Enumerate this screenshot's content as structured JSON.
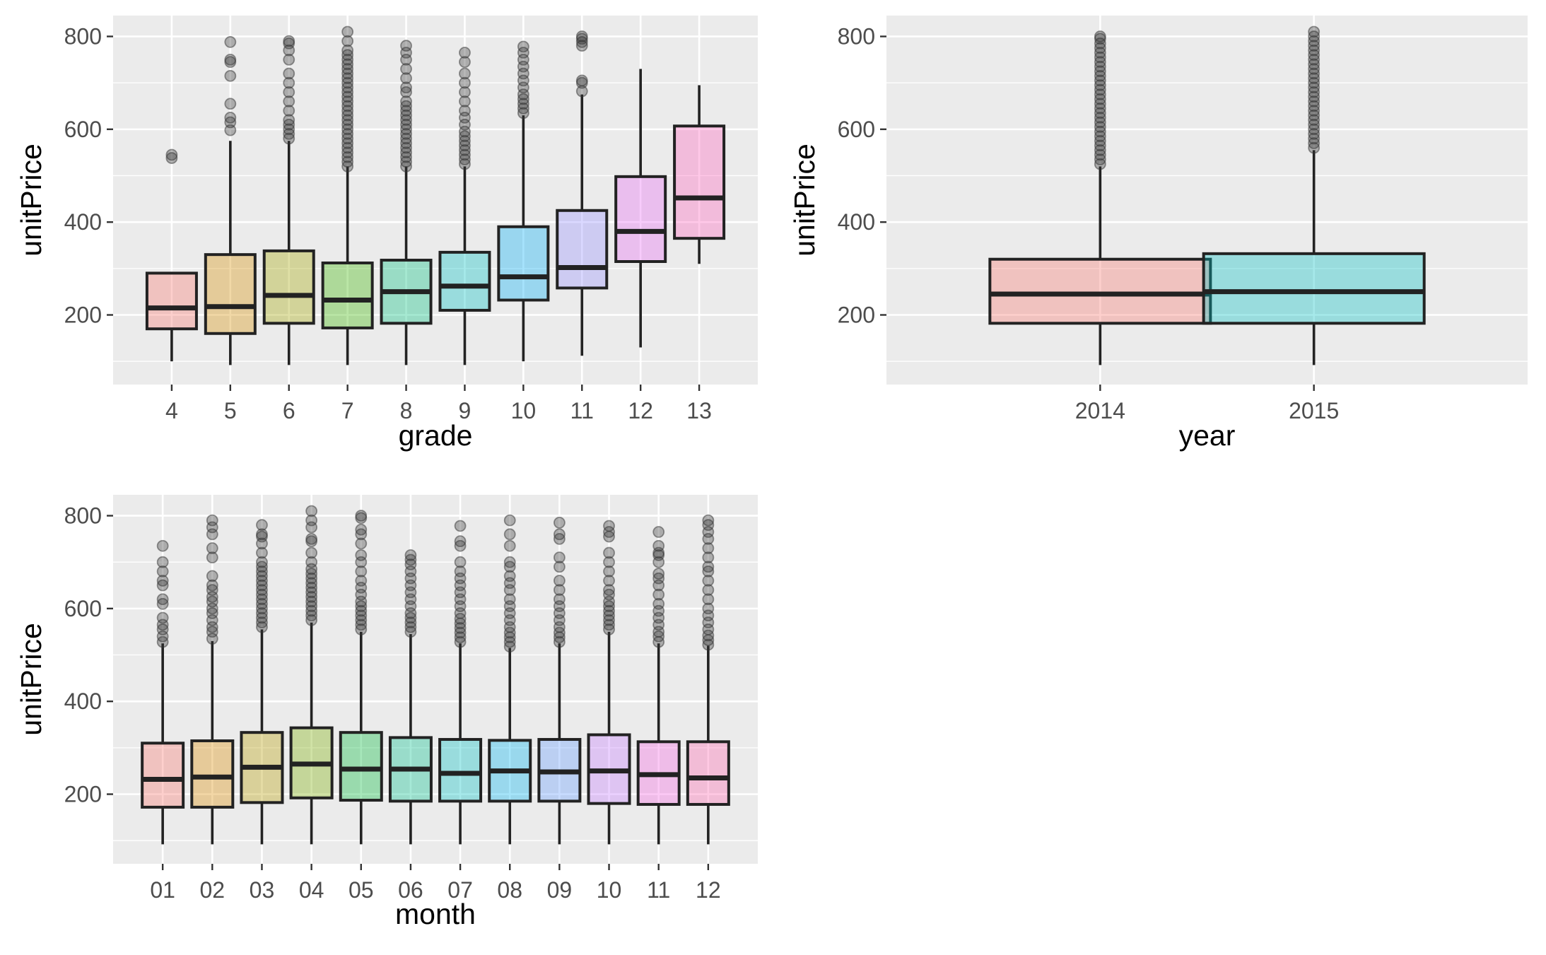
{
  "chart_data": [
    {
      "type": "boxplot",
      "xlabel": "grade",
      "ylabel": "unitPrice",
      "ylim": [
        50,
        845
      ],
      "yticks": [
        200,
        400,
        600,
        800
      ],
      "yminor": [
        100,
        300,
        500,
        700
      ],
      "categories": [
        "4",
        "5",
        "6",
        "7",
        "8",
        "9",
        "10",
        "11",
        "12",
        "13"
      ],
      "boxes": [
        {
          "category": "4",
          "min": 100,
          "q1": 170,
          "median": 215,
          "q3": 290,
          "max": 293,
          "outliers": [
            538,
            545
          ]
        },
        {
          "category": "5",
          "min": 92,
          "q1": 160,
          "median": 218,
          "q3": 330,
          "max": 575,
          "outliers": [
            598,
            615,
            625,
            655,
            715,
            745,
            750,
            788
          ]
        },
        {
          "category": "6",
          "min": 92,
          "q1": 182,
          "median": 242,
          "q3": 338,
          "max": 575,
          "outliers": [
            580,
            590,
            600,
            610,
            620,
            640,
            660,
            680,
            700,
            720,
            750,
            770,
            785,
            790
          ]
        },
        {
          "category": "7",
          "min": 92,
          "q1": 172,
          "median": 232,
          "q3": 312,
          "max": 520,
          "outliers": [
            520,
            530,
            540,
            550,
            560,
            570,
            580,
            590,
            600,
            610,
            620,
            630,
            640,
            650,
            660,
            670,
            680,
            690,
            700,
            710,
            720,
            730,
            740,
            750,
            760,
            770,
            790,
            810
          ]
        },
        {
          "category": "8",
          "min": 92,
          "q1": 182,
          "median": 250,
          "q3": 318,
          "max": 520,
          "outliers": [
            520,
            530,
            540,
            550,
            560,
            570,
            580,
            590,
            600,
            610,
            620,
            630,
            640,
            650,
            660,
            680,
            690,
            710,
            730,
            750,
            765,
            780
          ]
        },
        {
          "category": "9",
          "min": 92,
          "q1": 210,
          "median": 262,
          "q3": 335,
          "max": 520,
          "outliers": [
            525,
            535,
            545,
            555,
            565,
            575,
            585,
            595,
            610,
            625,
            640,
            660,
            680,
            700,
            720,
            745,
            765
          ]
        },
        {
          "category": "10",
          "min": 100,
          "q1": 232,
          "median": 282,
          "q3": 390,
          "max": 630,
          "outliers": [
            635,
            645,
            655,
            665,
            675,
            690,
            705,
            720,
            735,
            750,
            765,
            778
          ]
        },
        {
          "category": "11",
          "min": 112,
          "q1": 258,
          "median": 302,
          "q3": 425,
          "max": 675,
          "outliers": [
            682,
            700,
            705,
            780,
            788,
            795,
            800
          ]
        },
        {
          "category": "12",
          "min": 130,
          "q1": 315,
          "median": 380,
          "q3": 498,
          "max": 730,
          "outliers": []
        },
        {
          "category": "13",
          "min": 310,
          "q1": 365,
          "median": 452,
          "q3": 607,
          "max": 695,
          "outliers": []
        }
      ],
      "colors": [
        "#F8766D",
        "#D89000",
        "#A3A500",
        "#39B600",
        "#00BF7D",
        "#00BFC4",
        "#00B0F6",
        "#9590FF",
        "#E76BF3",
        "#FF62BC"
      ]
    },
    {
      "type": "boxplot",
      "xlabel": "year",
      "ylabel": "unitPrice",
      "ylim": [
        50,
        845
      ],
      "yticks": [
        200,
        400,
        600,
        800
      ],
      "yminor": [
        100,
        300,
        500,
        700
      ],
      "categories": [
        "2014",
        "2015"
      ],
      "boxes": [
        {
          "category": "2014",
          "min": 92,
          "q1": 182,
          "median": 245,
          "q3": 320,
          "max": 520,
          "outliers": [
            525,
            535,
            545,
            555,
            565,
            575,
            585,
            595,
            605,
            615,
            625,
            635,
            645,
            655,
            665,
            675,
            685,
            695,
            705,
            715,
            725,
            735,
            745,
            755,
            765,
            775,
            785,
            795,
            800
          ]
        },
        {
          "category": "2015",
          "min": 92,
          "q1": 182,
          "median": 250,
          "q3": 332,
          "max": 555,
          "outliers": [
            560,
            570,
            580,
            590,
            600,
            610,
            620,
            630,
            640,
            650,
            660,
            670,
            680,
            690,
            700,
            710,
            720,
            730,
            740,
            750,
            760,
            770,
            780,
            790,
            800,
            810
          ]
        }
      ],
      "colors": [
        "#F8766D",
        "#00BFC4"
      ]
    },
    {
      "type": "boxplot",
      "xlabel": "month",
      "ylabel": "unitPrice",
      "ylim": [
        50,
        845
      ],
      "yticks": [
        200,
        400,
        600,
        800
      ],
      "yminor": [
        100,
        300,
        500,
        700
      ],
      "categories": [
        "01",
        "02",
        "03",
        "04",
        "05",
        "06",
        "07",
        "08",
        "09",
        "10",
        "11",
        "12"
      ],
      "boxes": [
        {
          "category": "01",
          "min": 92,
          "q1": 172,
          "median": 232,
          "q3": 310,
          "max": 525,
          "outliers": [
            528,
            540,
            555,
            565,
            580,
            610,
            620,
            650,
            660,
            680,
            700,
            735
          ]
        },
        {
          "category": "02",
          "min": 92,
          "q1": 172,
          "median": 237,
          "q3": 315,
          "max": 530,
          "outliers": [
            535,
            550,
            560,
            575,
            590,
            600,
            615,
            625,
            640,
            650,
            670,
            710,
            730,
            760,
            775,
            790
          ]
        },
        {
          "category": "03",
          "min": 92,
          "q1": 182,
          "median": 258,
          "q3": 333,
          "max": 555,
          "outliers": [
            560,
            570,
            580,
            590,
            600,
            610,
            620,
            630,
            640,
            650,
            660,
            670,
            680,
            690,
            700,
            720,
            740,
            755,
            760,
            780
          ]
        },
        {
          "category": "04",
          "min": 92,
          "q1": 192,
          "median": 265,
          "q3": 343,
          "max": 570,
          "outliers": [
            575,
            585,
            595,
            605,
            615,
            625,
            635,
            645,
            655,
            665,
            675,
            685,
            700,
            720,
            745,
            750,
            775,
            790,
            810
          ]
        },
        {
          "category": "05",
          "min": 92,
          "q1": 187,
          "median": 254,
          "q3": 333,
          "max": 550,
          "outliers": [
            555,
            565,
            575,
            585,
            595,
            605,
            615,
            630,
            645,
            660,
            680,
            700,
            715,
            740,
            760,
            770,
            795,
            800
          ]
        },
        {
          "category": "06",
          "min": 92,
          "q1": 185,
          "median": 254,
          "q3": 322,
          "max": 545,
          "outliers": [
            550,
            560,
            570,
            580,
            590,
            605,
            620,
            635,
            650,
            665,
            680,
            695,
            705,
            715
          ]
        },
        {
          "category": "07",
          "min": 92,
          "q1": 185,
          "median": 245,
          "q3": 318,
          "max": 525,
          "outliers": [
            528,
            538,
            548,
            558,
            568,
            578,
            590,
            605,
            620,
            635,
            650,
            665,
            680,
            700,
            735,
            745,
            778
          ]
        },
        {
          "category": "08",
          "min": 92,
          "q1": 185,
          "median": 250,
          "q3": 316,
          "max": 515,
          "outliers": [
            518,
            528,
            538,
            548,
            560,
            575,
            590,
            605,
            620,
            640,
            655,
            670,
            690,
            700,
            735,
            760,
            790
          ]
        },
        {
          "category": "09",
          "min": 92,
          "q1": 185,
          "median": 248,
          "q3": 318,
          "max": 525,
          "outliers": [
            528,
            538,
            548,
            560,
            575,
            590,
            605,
            620,
            640,
            660,
            690,
            710,
            750,
            760,
            785
          ]
        },
        {
          "category": "10",
          "min": 92,
          "q1": 180,
          "median": 250,
          "q3": 328,
          "max": 550,
          "outliers": [
            555,
            565,
            575,
            585,
            595,
            605,
            615,
            630,
            640,
            660,
            680,
            700,
            720,
            755,
            765,
            778
          ]
        },
        {
          "category": "11",
          "min": 92,
          "q1": 178,
          "median": 242,
          "q3": 313,
          "max": 525,
          "outliers": [
            528,
            540,
            550,
            565,
            580,
            595,
            610,
            630,
            650,
            665,
            675,
            700,
            715,
            720,
            735,
            765
          ]
        },
        {
          "category": "12",
          "min": 92,
          "q1": 178,
          "median": 235,
          "q3": 313,
          "max": 520,
          "outliers": [
            522,
            532,
            542,
            555,
            570,
            585,
            600,
            620,
            640,
            660,
            680,
            690,
            710,
            730,
            750,
            765,
            780,
            790
          ]
        }
      ],
      "colors": [
        "#F8766D",
        "#DE8C00",
        "#B79F00",
        "#7CAE00",
        "#00BA38",
        "#00C08B",
        "#00BFC4",
        "#00B4F0",
        "#619CFF",
        "#C77CFF",
        "#F564E3",
        "#FF64B0"
      ]
    }
  ]
}
